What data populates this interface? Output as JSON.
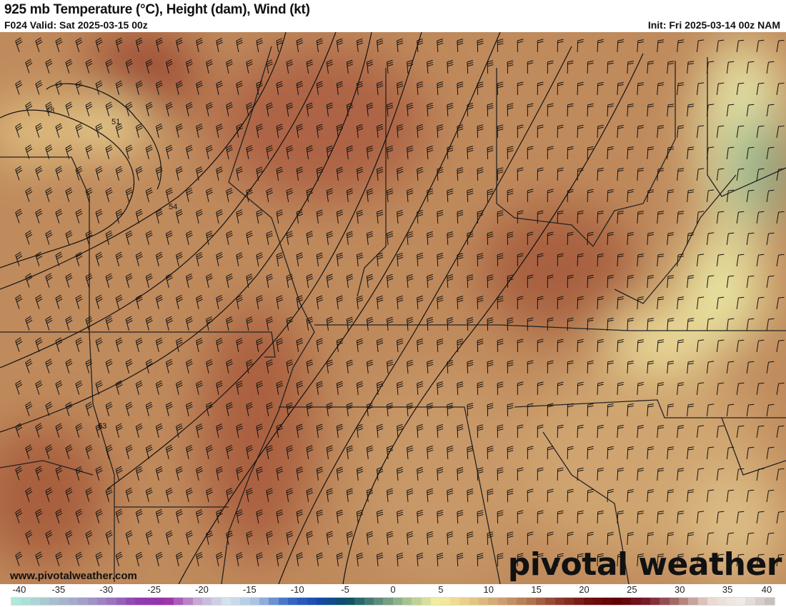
{
  "header": {
    "title": "925 mb Temperature (°C), Height (dam), Wind (kt)",
    "valid": "F024 Valid: Sat 2025-03-15 00z",
    "init": "Init: Fri 2025-03-14 00z NAM"
  },
  "map": {
    "contour_labels": [
      "48",
      "51",
      "54",
      "63"
    ],
    "watermark_url": "www.pivotalweather.com",
    "logo_text": "pivotal weather"
  },
  "colorbar": {
    "min": -40,
    "max": 40,
    "tick_labels": [
      "-40",
      "-35",
      "-30",
      "-25",
      "-20",
      "-15",
      "-10",
      "-5",
      "0",
      "5",
      "10",
      "15",
      "20",
      "25",
      "30",
      "35",
      "40"
    ],
    "color_stops": [
      "#b0e8dc",
      "#a9c8d0",
      "#a6a8c8",
      "#9d7fc0",
      "#8e3fb0",
      "#9a30a8",
      "#c4a8d4",
      "#d4e4ec",
      "#a8c0e0",
      "#3a6cc4",
      "#1848b0",
      "#0a5060",
      "#5c8c7c",
      "#a8c490",
      "#f6f0a0",
      "#e8cc88",
      "#d0a474",
      "#b07850",
      "#8c3c2c",
      "#701010",
      "#600000",
      "#7a2030",
      "#a87870",
      "#e8d8d0",
      "#f2ece8",
      "#c8c0bc"
    ]
  }
}
